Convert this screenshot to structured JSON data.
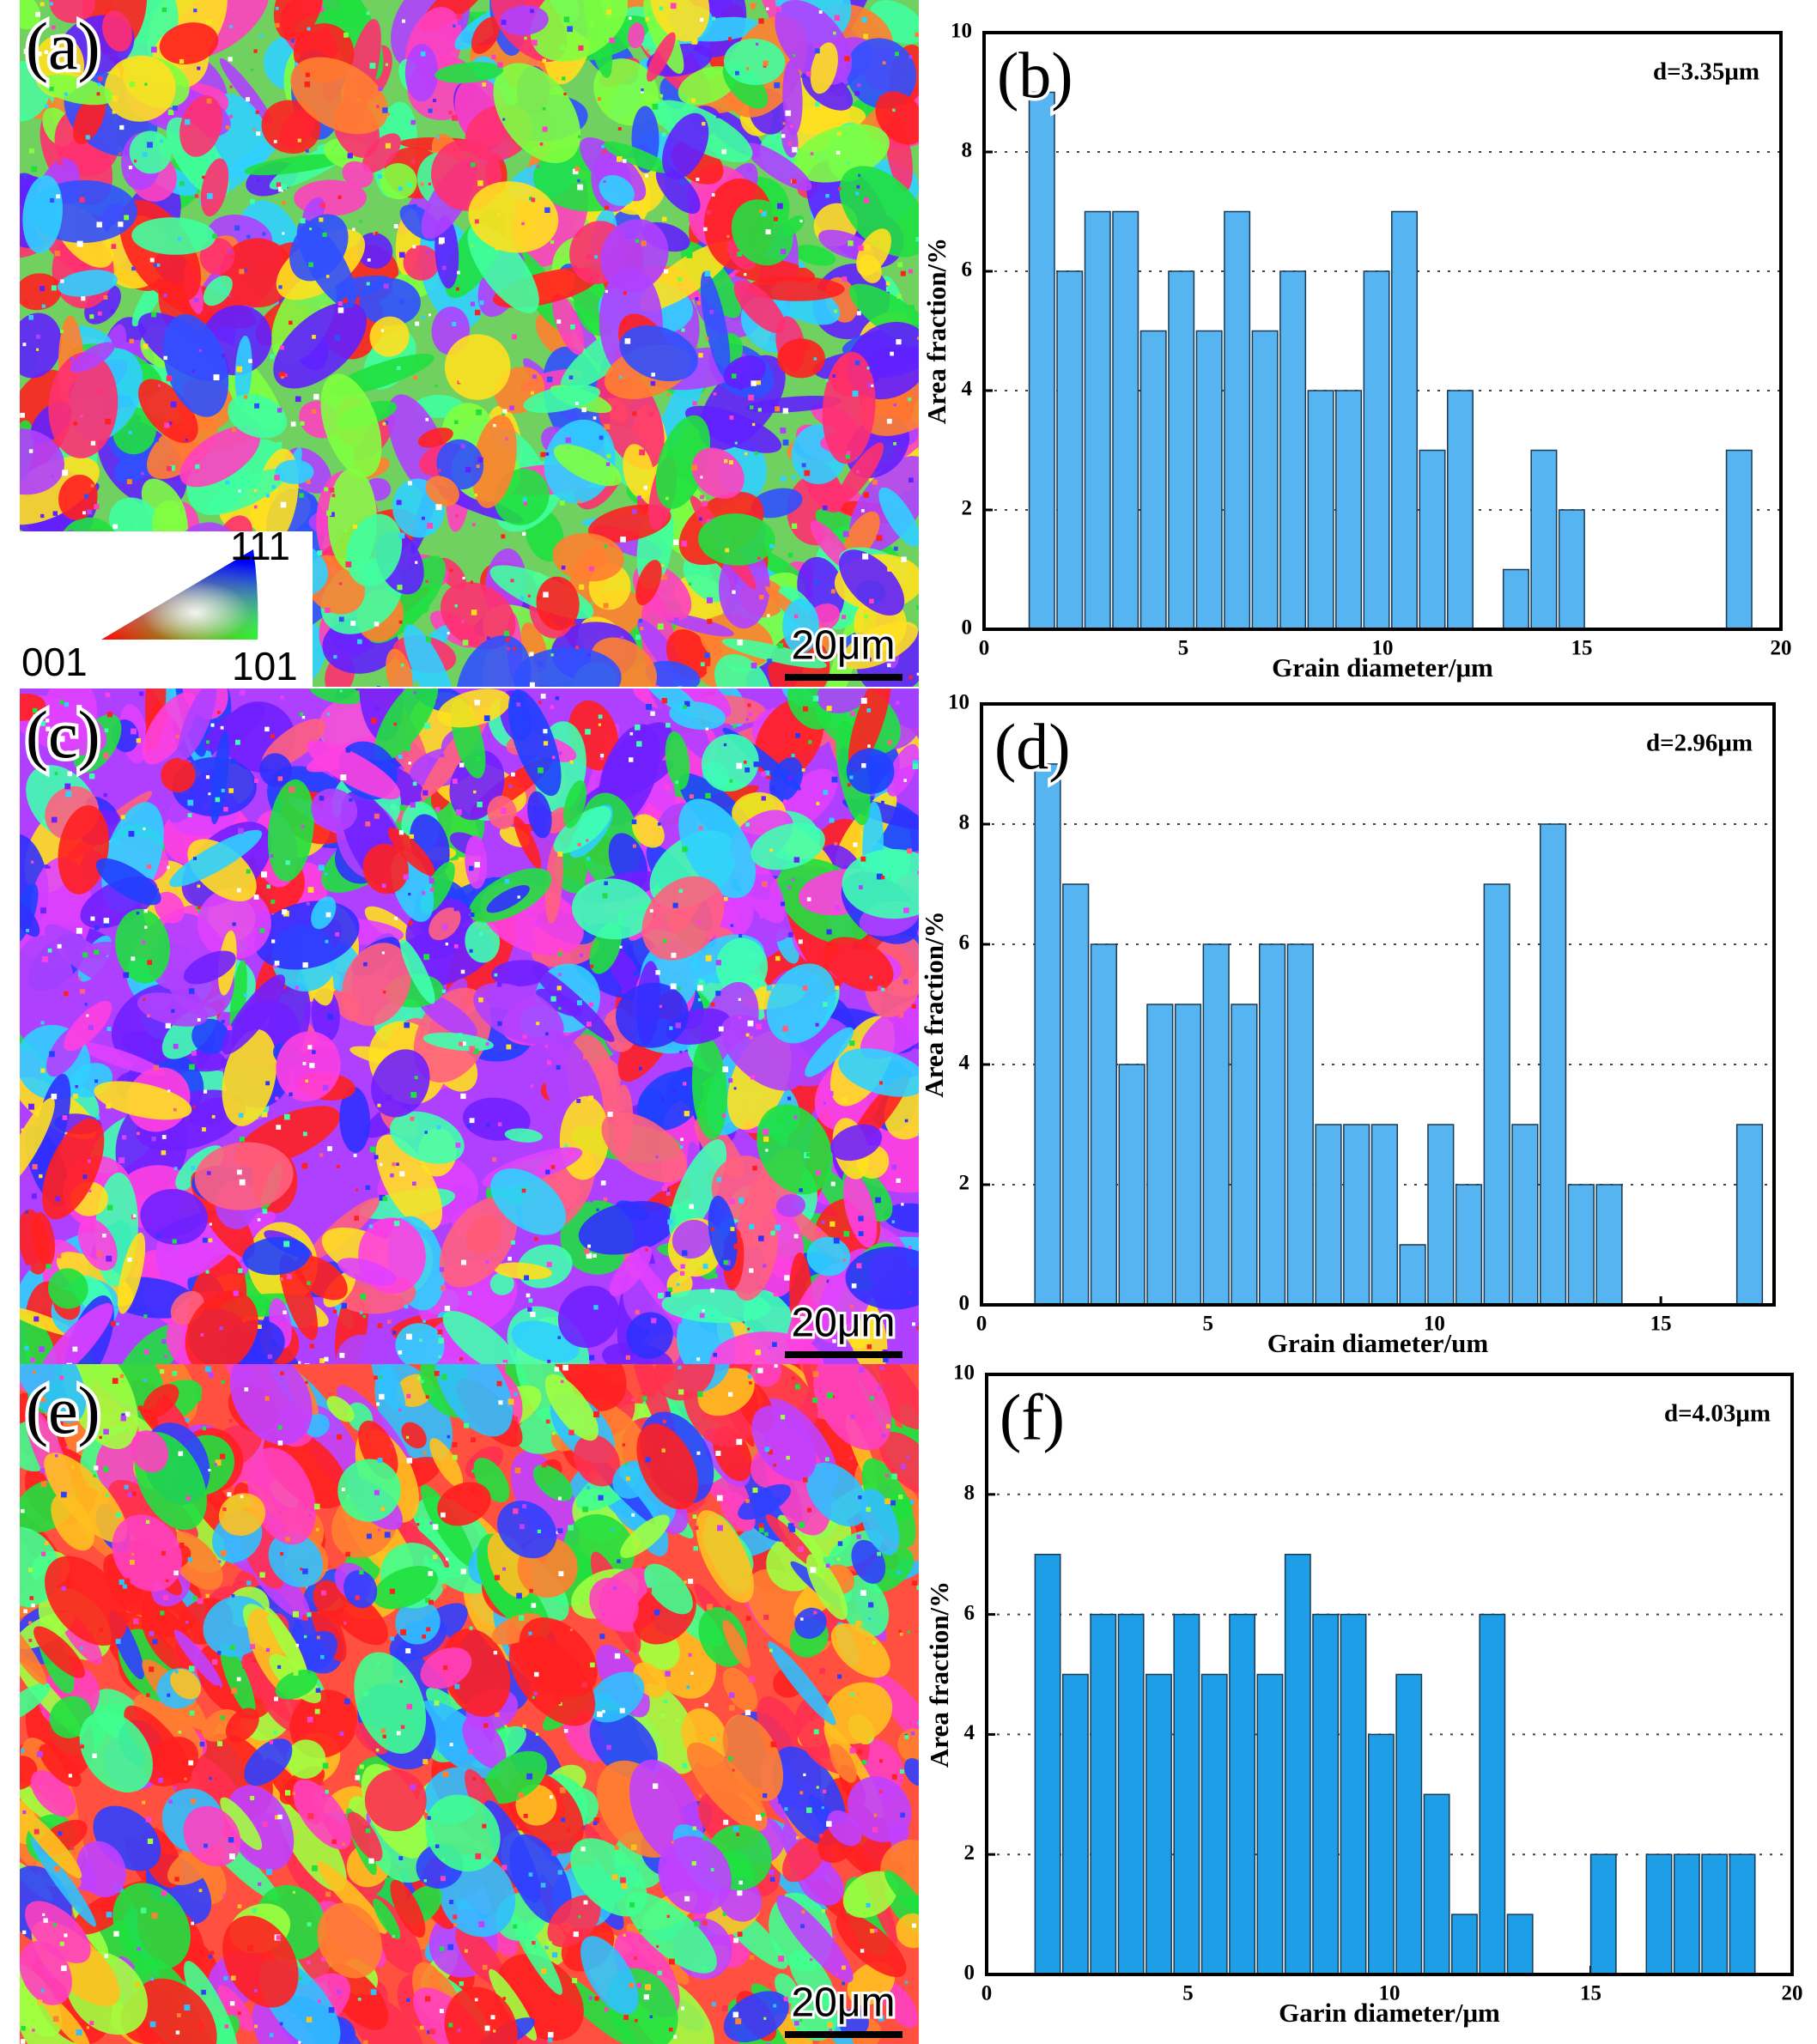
{
  "maps": [
    {
      "label": "(a)",
      "scale_bar": "20μm"
    },
    {
      "label": "(c)",
      "scale_bar": "20μm"
    },
    {
      "label": "(e)",
      "scale_bar": "20μm"
    }
  ],
  "ipf_legend": {
    "corners": [
      "001",
      "111",
      "101"
    ]
  },
  "chart_data": [
    {
      "type": "histogram",
      "panel_label": "(b)",
      "annotation": "d=3.35μm",
      "x_label": "Grain diameter/μm",
      "y_label": "Area fraction/%",
      "bins": [
        1.1,
        1.8,
        2.5,
        3.2,
        3.9,
        4.6,
        5.3,
        6.0,
        6.7,
        7.4,
        8.1,
        8.8,
        9.5,
        10.2,
        10.9,
        11.6,
        12.3,
        13.0,
        13.7,
        14.4,
        15.1,
        15.8,
        16.5,
        17.2,
        17.9,
        18.6,
        19.3
      ],
      "values": [
        9,
        6,
        7,
        7,
        5,
        6,
        5,
        7,
        5,
        6,
        4,
        4,
        6,
        7,
        3,
        4,
        0,
        1,
        3,
        2,
        0,
        0,
        0,
        0,
        0,
        3
      ],
      "color": "#56b4f0",
      "xlim": [
        0,
        20
      ],
      "xticks": [
        0,
        5,
        10,
        15,
        20
      ],
      "ylim": [
        0,
        10
      ],
      "yticks": [
        0,
        2,
        4,
        6,
        8,
        10
      ],
      "grid": true
    },
    {
      "type": "histogram",
      "panel_label": "(d)",
      "annotation": "d=2.96μm",
      "x_label": "Grain diameter/um",
      "y_label": "Area fraction/%",
      "bins": [
        1.15,
        1.77,
        2.39,
        3.01,
        3.63,
        4.25,
        4.87,
        5.49,
        6.11,
        6.73,
        7.35,
        7.97,
        8.59,
        9.21,
        9.83,
        10.45,
        11.07,
        11.69,
        12.31,
        12.93,
        13.55,
        14.17,
        14.79,
        15.41,
        16.03,
        16.65,
        17.27
      ],
      "values": [
        9,
        7,
        6,
        4,
        5,
        5,
        6,
        5,
        6,
        6,
        3,
        3,
        3,
        1,
        3,
        2,
        7,
        3,
        8,
        2,
        2,
        0,
        0,
        0,
        0,
        3
      ],
      "color": "#56b4f0",
      "xlim": [
        0,
        17.5
      ],
      "xticks": [
        0,
        5,
        10,
        15
      ],
      "ylim": [
        0,
        10
      ],
      "yticks": [
        0,
        2,
        4,
        6,
        8,
        10
      ],
      "grid": true
    },
    {
      "type": "histogram",
      "panel_label": "(f)",
      "annotation": "d=4.03μm",
      "x_label": "Garin diameter/μm",
      "y_label": "Area fraction/%",
      "bins": [
        1.17,
        1.86,
        2.55,
        3.24,
        3.93,
        4.62,
        5.31,
        6.0,
        6.69,
        7.38,
        8.07,
        8.76,
        9.45,
        10.14,
        10.83,
        11.52,
        12.21,
        12.9,
        13.59,
        14.28,
        14.97,
        15.66,
        16.35,
        17.04,
        17.73,
        18.42,
        19.11
      ],
      "values": [
        7,
        5,
        6,
        6,
        5,
        6,
        5,
        6,
        5,
        7,
        6,
        6,
        4,
        5,
        3,
        1,
        6,
        1,
        0,
        0,
        2,
        0,
        2,
        2,
        2,
        2
      ],
      "color": "#1f9ee8",
      "xlim": [
        0,
        20
      ],
      "xticks": [
        0,
        5,
        10,
        15,
        20
      ],
      "ylim": [
        0,
        10
      ],
      "yticks": [
        0,
        2,
        4,
        6,
        8,
        10
      ],
      "grid": true
    }
  ]
}
